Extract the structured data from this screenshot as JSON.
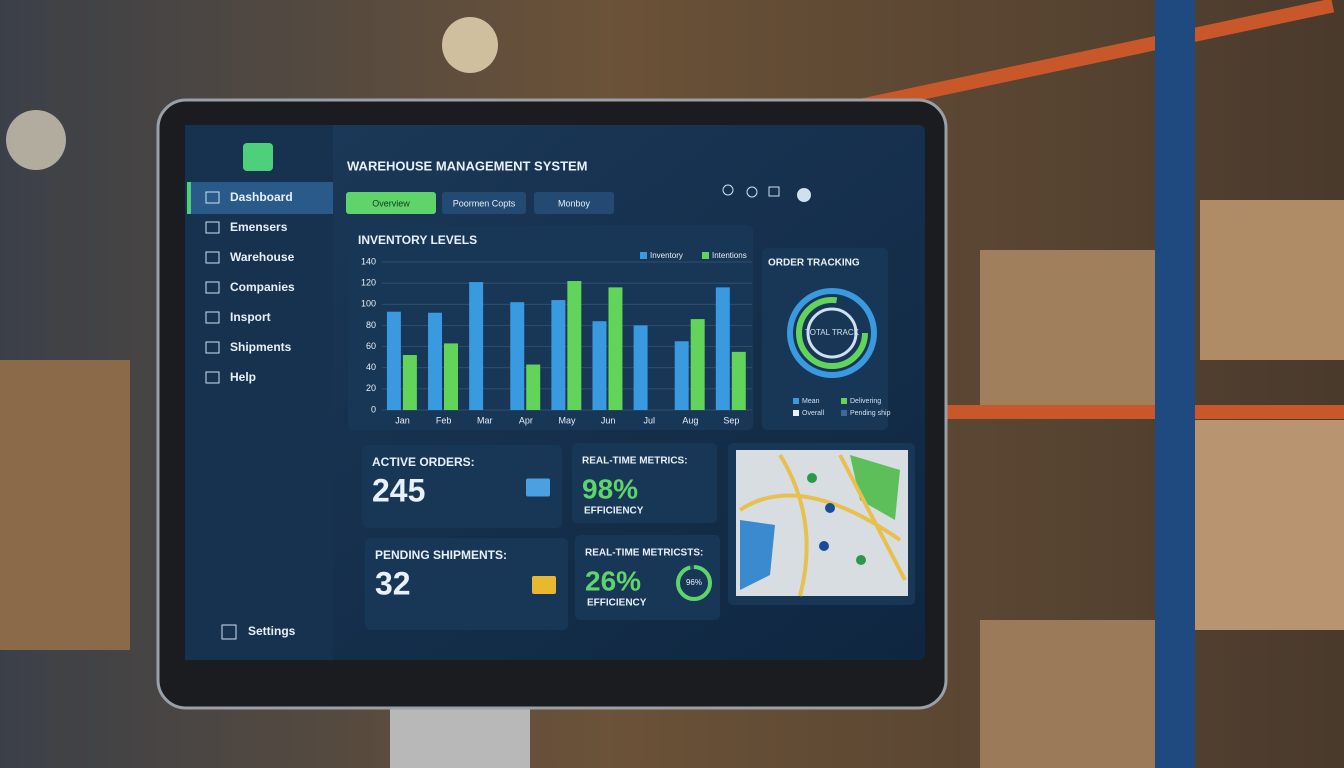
{
  "header": {
    "title": "WAREHOUSE MANAGEMENT SYSTEM"
  },
  "sidebar": {
    "items": [
      "Dashboard",
      "Emensers",
      "Warehouse",
      "Companies",
      "Insport",
      "Shipments",
      "Help"
    ],
    "settings": "Settings"
  },
  "tabs": [
    "Overview",
    "Poormen Copts",
    "Monboy"
  ],
  "chart_data": {
    "type": "bar",
    "title": "INVENTORY LEVELS",
    "categories": [
      "Jan",
      "Feb",
      "Mar",
      "Apr",
      "May",
      "Jun",
      "Jul",
      "Aug",
      "Sep"
    ],
    "series": [
      {
        "name": "Inventory",
        "color": "#3a9ae0",
        "values": [
          93,
          92,
          121,
          102,
          104,
          84,
          80,
          65,
          116
        ]
      },
      {
        "name": "Intentions",
        "color": "#63d45a",
        "values": [
          52,
          63,
          null,
          43,
          122,
          116,
          null,
          86,
          55
        ]
      }
    ],
    "ylim": [
      0,
      140
    ],
    "yticks": [
      0,
      20,
      40,
      60,
      80,
      100,
      120,
      140
    ],
    "grid": true
  },
  "order_tracking": {
    "title": "ORDER TRACKING",
    "center": "TOTAL TRACK",
    "legend": [
      "Mean",
      "Delivering",
      "Overall",
      "Pending ship"
    ]
  },
  "cards": [
    {
      "label": "ACTIVE ORDERS:",
      "value": 245
    },
    {
      "label": "REAL-TIME METRICS:",
      "value": 98,
      "value_label": "98%",
      "caption": "EFFICIENCY"
    },
    {
      "label": "PENDING SHIPMENTS:",
      "value": 32
    },
    {
      "label": "REAL-TIME METRICSTS:",
      "value": 26,
      "value_label": "26%",
      "caption": "EFFICIENCY",
      "ring": 96,
      "ring_label": "96%"
    }
  ]
}
